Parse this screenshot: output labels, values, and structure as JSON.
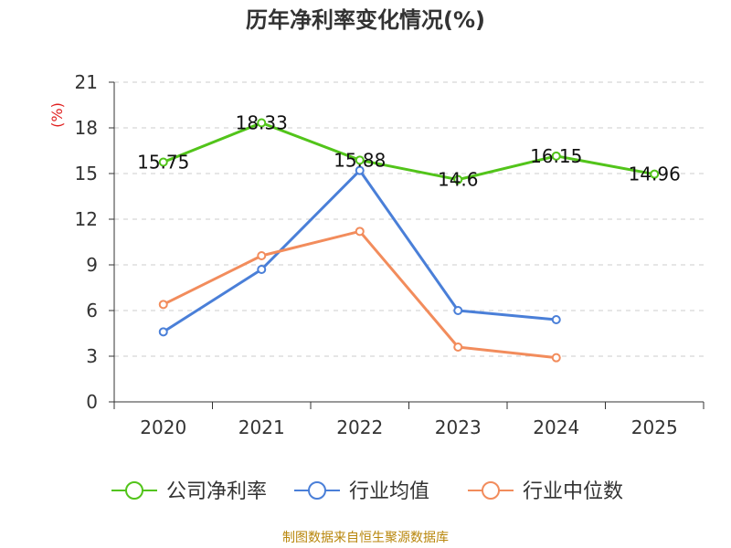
{
  "chart_data": {
    "type": "line",
    "title": "历年净利率变化情况(%)",
    "unit_label": "(%)",
    "categories": [
      "2020",
      "2021",
      "2022",
      "2023",
      "2024",
      "2025"
    ],
    "ylim": [
      0,
      21
    ],
    "yticks": [
      0,
      3,
      6,
      9,
      12,
      15,
      18,
      21
    ],
    "grid": true,
    "legend_position": "bottom",
    "series": [
      {
        "name": "公司净利率",
        "color": "#52c41a",
        "values": [
          15.75,
          18.33,
          15.88,
          14.6,
          16.15,
          14.96
        ],
        "labels": [
          "15.75",
          "18.33",
          "15.88",
          "14.6",
          "16.15",
          "14.96"
        ]
      },
      {
        "name": "行业均值",
        "color": "#4a7fd8",
        "values": [
          4.6,
          8.7,
          15.2,
          6.0,
          5.4,
          null
        ]
      },
      {
        "name": "行业中位数",
        "color": "#f28c5c",
        "values": [
          6.4,
          9.6,
          11.2,
          3.6,
          2.9,
          null
        ]
      }
    ]
  },
  "source_note": "制图数据来自恒生聚源数据库"
}
